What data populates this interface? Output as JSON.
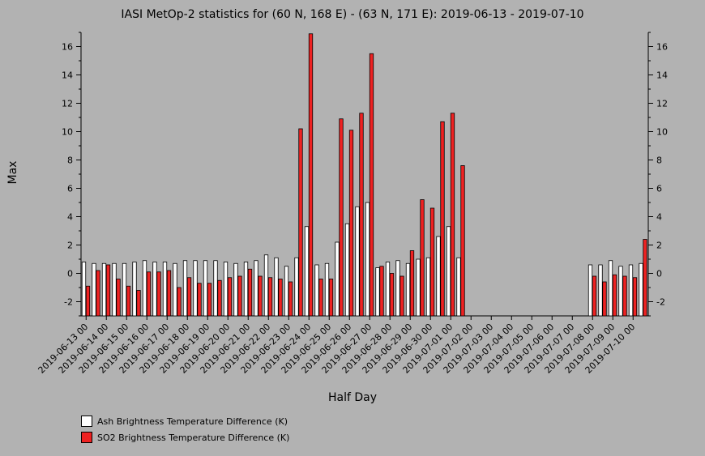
{
  "chart_data": {
    "type": "bar",
    "title": "IASI MetOp-2 statistics for (60 N, 168 E) - (63 N, 171 E): 2019-06-13 - 2019-07-10",
    "xlabel": "Half Day",
    "ylabel": "Max",
    "ylim": [
      -3,
      17
    ],
    "yticks": [
      -2,
      0,
      2,
      4,
      6,
      8,
      10,
      12,
      14,
      16
    ],
    "x_tick_labels": [
      "2019-06-13 00",
      "2019-06-14 00",
      "2019-06-15 00",
      "2019-06-16 00",
      "2019-06-17 00",
      "2019-06-18 00",
      "2019-06-19 00",
      "2019-06-20 00",
      "2019-06-21 00",
      "2019-06-22 00",
      "2019-06-23 00",
      "2019-06-24 00",
      "2019-06-25 00",
      "2019-06-26 00",
      "2019-06-27 00",
      "2019-06-28 00",
      "2019-06-29 00",
      "2019-06-30 00",
      "2019-07-01 00",
      "2019-07-02 00",
      "2019-07-03 00",
      "2019-07-04 00",
      "2019-07-05 00",
      "2019-07-06 00",
      "2019-07-07 00",
      "2019-07-08 00",
      "2019-07-09 00",
      "2019-07-10 00"
    ],
    "legend_position": "bottom-left",
    "series": [
      {
        "name": "Ash Brightness Temperature Difference (K)",
        "color": "#ffffff",
        "values": [
          0.8,
          0.7,
          0.7,
          0.7,
          0.7,
          0.8,
          0.9,
          0.8,
          0.8,
          0.7,
          0.9,
          0.9,
          0.9,
          0.9,
          0.8,
          0.7,
          0.8,
          0.9,
          1.3,
          1.1,
          0.5,
          1.1,
          3.3,
          0.6,
          0.7,
          2.2,
          3.5,
          4.7,
          5.0,
          0.4,
          0.8,
          0.9,
          0.7,
          1.0,
          1.1,
          2.6,
          3.3,
          1.1,
          null,
          null,
          null,
          null,
          null,
          null,
          null,
          null,
          null,
          null,
          null,
          null,
          0.6,
          0.6,
          0.9,
          0.5,
          0.6,
          0.7
        ]
      },
      {
        "name": "SO2 Brightness Temperature Difference (K)",
        "color": "#ee2222",
        "values": [
          -0.9,
          0.2,
          0.6,
          -0.4,
          -0.9,
          -1.2,
          0.1,
          0.1,
          0.2,
          -1.0,
          -0.3,
          -0.7,
          -0.7,
          -0.5,
          -0.3,
          -0.2,
          0.3,
          -0.2,
          -0.3,
          -0.4,
          -0.6,
          10.2,
          16.9,
          -0.4,
          -0.4,
          10.9,
          10.1,
          11.3,
          15.5,
          0.5,
          0.0,
          -0.2,
          1.6,
          5.2,
          4.6,
          10.7,
          11.3,
          7.6,
          null,
          null,
          null,
          null,
          null,
          null,
          null,
          null,
          null,
          null,
          null,
          null,
          -0.2,
          -0.6,
          -0.1,
          -0.2,
          -0.3,
          2.4
        ]
      }
    ]
  }
}
